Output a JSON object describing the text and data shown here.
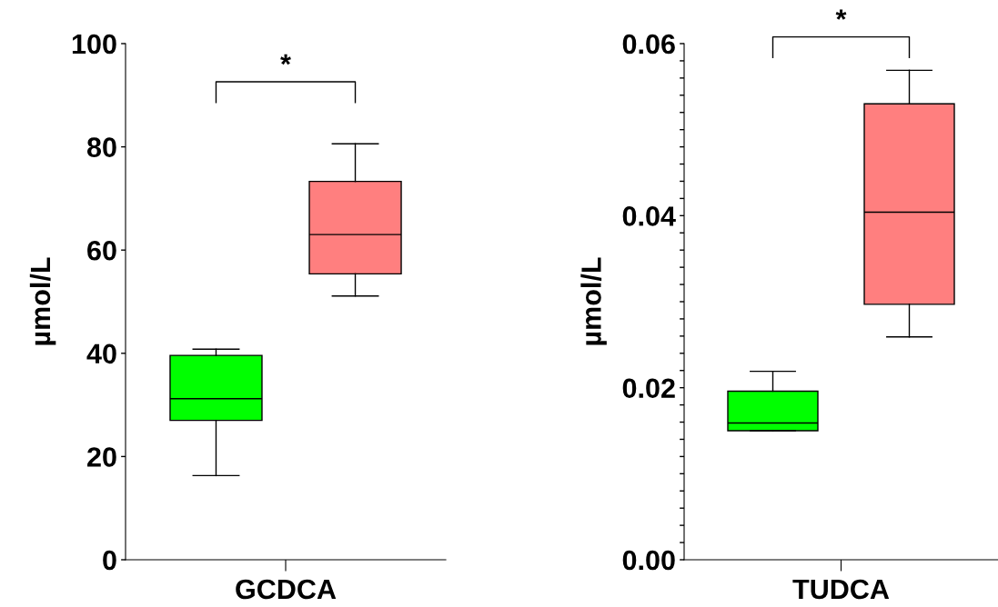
{
  "chart_data": [
    {
      "type": "box",
      "categories": [
        null,
        null
      ],
      "xlabel": "GCDCA",
      "ylabel": "µmol/L",
      "colors": [
        "#00ff00",
        "#ff7f7f"
      ],
      "boxes": [
        {
          "low": 16.3,
          "q1": 27.0,
          "median": 31.2,
          "q3": 39.6,
          "high": 40.8
        },
        {
          "low": 51.1,
          "q1": 55.4,
          "median": 63.0,
          "q3": 73.3,
          "high": 80.6
        }
      ],
      "ylim": [
        0,
        100
      ],
      "yticks": [
        0,
        20,
        40,
        60,
        80,
        100
      ],
      "annotations": [
        "*"
      ]
    },
    {
      "type": "box",
      "categories": [
        null,
        null
      ],
      "xlabel": "TUDCA",
      "ylabel": "µmol/L",
      "colors": [
        "#00ff00",
        "#ff7f7f"
      ],
      "boxes": [
        {
          "low": 0.015,
          "q1": 0.015,
          "median": 0.0159,
          "q3": 0.0196,
          "high": 0.0219
        },
        {
          "low": 0.0259,
          "q1": 0.0297,
          "median": 0.0404,
          "q3": 0.053,
          "high": 0.0569
        }
      ],
      "ylim": [
        0,
        0.06
      ],
      "yticks": [
        {
          "value": 0,
          "label": "0.00"
        },
        {
          "value": 0.002,
          "label": null
        },
        {
          "value": 0.004,
          "label": null
        },
        {
          "value": 0.006,
          "label": null
        },
        {
          "value": 0.008,
          "label": null
        },
        {
          "value": 0.01,
          "label": null
        },
        {
          "value": 0.012,
          "label": null
        },
        {
          "value": 0.014,
          "label": null
        },
        {
          "value": 0.016,
          "label": null
        },
        {
          "value": 0.018,
          "label": null
        },
        {
          "value": 0.02,
          "label": "0.02"
        },
        {
          "value": 0.022,
          "label": null
        },
        {
          "value": 0.024,
          "label": null
        },
        {
          "value": 0.026,
          "label": null
        },
        {
          "value": 0.028,
          "label": null
        },
        {
          "value": 0.03,
          "label": null
        },
        {
          "value": 0.032,
          "label": null
        },
        {
          "value": 0.034,
          "label": null
        },
        {
          "value": 0.036,
          "label": null
        },
        {
          "value": 0.038,
          "label": null
        },
        {
          "value": 0.04,
          "label": "0.04"
        },
        {
          "value": 0.042,
          "label": null
        },
        {
          "value": 0.044,
          "label": null
        },
        {
          "value": 0.046,
          "label": null
        },
        {
          "value": 0.048,
          "label": null
        },
        {
          "value": 0.05,
          "label": null
        },
        {
          "value": 0.052,
          "label": null
        },
        {
          "value": 0.054,
          "label": null
        },
        {
          "value": 0.056,
          "label": null
        },
        {
          "value": 0.058,
          "label": null
        },
        {
          "value": 0.06,
          "label": "0.06"
        }
      ],
      "annotations": [
        "*"
      ]
    }
  ]
}
